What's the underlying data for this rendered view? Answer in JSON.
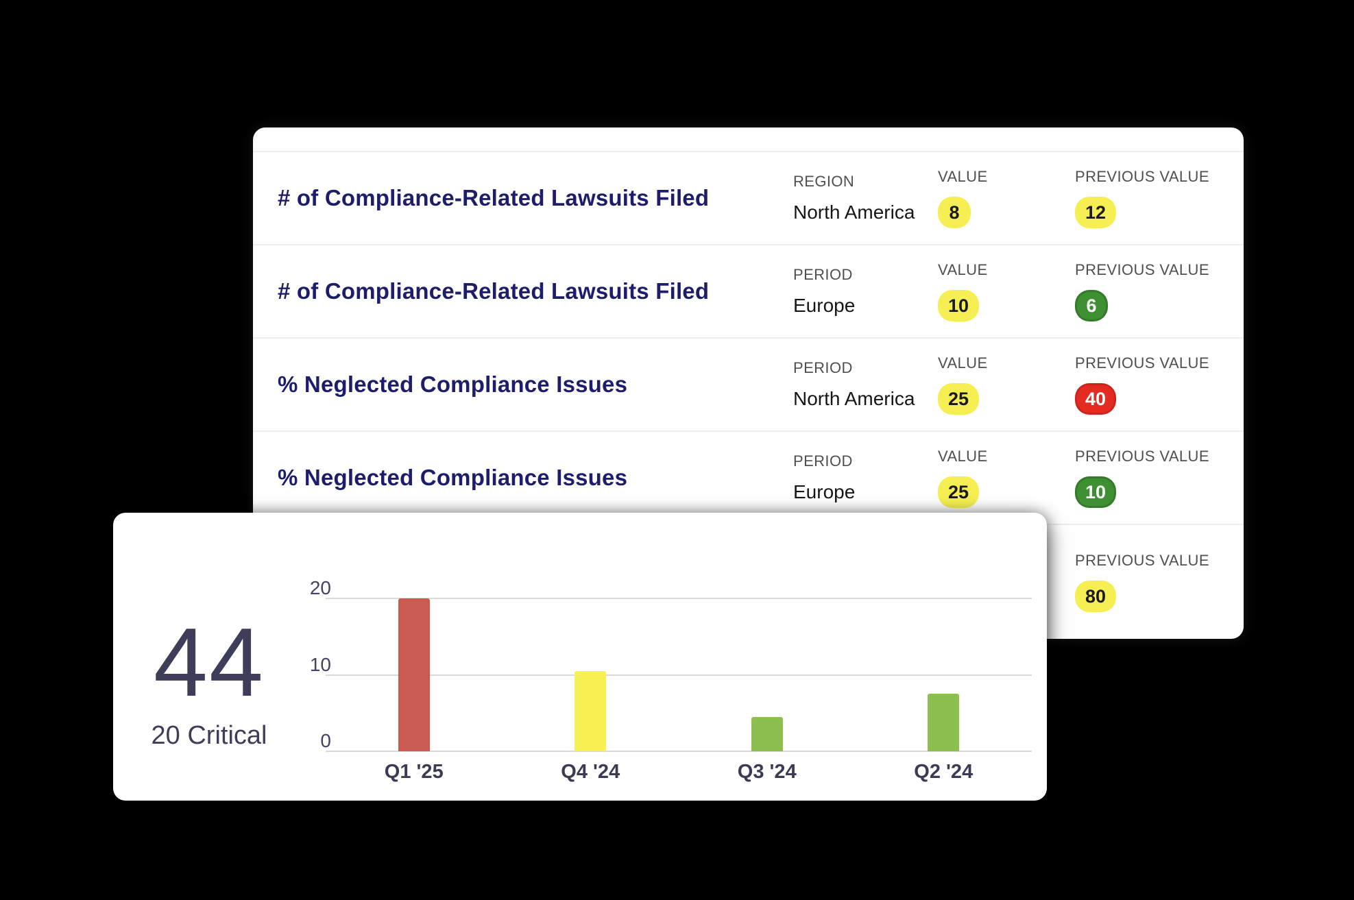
{
  "background_color": "#000000",
  "palette": {
    "badge_yellow": "#f6ef53",
    "badge_green": "#3f8f33",
    "badge_red": "#e32b22",
    "title_navy": "#1d1d6b",
    "header_gray": "#4f4f4f",
    "stat_slate": "#3e3d5a",
    "grid_gray": "#d9d9d9"
  },
  "metrics_card": {
    "rows": [
      {
        "title": "# of Compliance-Related Lawsuits Filed",
        "dim_label": "REGION",
        "dim_value": "North America",
        "value_label": "VALUE",
        "value": "8",
        "value_color": "yellow",
        "previous_label": "PREVIOUS VALUE",
        "previous_value": "12",
        "previous_color": "yellow"
      },
      {
        "title": "# of Compliance-Related Lawsuits Filed",
        "dim_label": "PERIOD",
        "dim_value": "Europe",
        "value_label": "VALUE",
        "value": "10",
        "value_color": "yellow",
        "previous_label": "PREVIOUS VALUE",
        "previous_value": "6",
        "previous_color": "green"
      },
      {
        "title": "% Neglected Compliance Issues",
        "dim_label": "PERIOD",
        "dim_value": "North America",
        "value_label": "VALUE",
        "value": "25",
        "value_color": "yellow",
        "previous_label": "PREVIOUS VALUE",
        "previous_value": "40",
        "previous_color": "red"
      },
      {
        "title": "% Neglected Compliance Issues",
        "dim_label": "PERIOD",
        "dim_value": "Europe",
        "value_label": "VALUE",
        "value": "25",
        "value_color": "yellow",
        "previous_label": "PREVIOUS VALUE",
        "previous_value": "10",
        "previous_color": "green"
      },
      {
        "previous_label": "PREVIOUS VALUE",
        "previous_value": "80",
        "previous_color": "yellow"
      }
    ]
  },
  "summary_card": {
    "total": "44",
    "subtitle": "20 Critical"
  },
  "chart_data": {
    "type": "bar",
    "categories": [
      "Q1 '25",
      "Q4 '24",
      "Q3 '24",
      "Q2 '24"
    ],
    "values": [
      20,
      10.5,
      4.5,
      7.5
    ],
    "colors": [
      "#cb5a50",
      "#f7f154",
      "#8cbf4e",
      "#8cbf4e"
    ],
    "title": "",
    "xlabel": "",
    "ylabel": "",
    "ylim": [
      0,
      20
    ],
    "yticks": [
      0,
      10,
      20
    ],
    "grid": true,
    "legend": false
  }
}
